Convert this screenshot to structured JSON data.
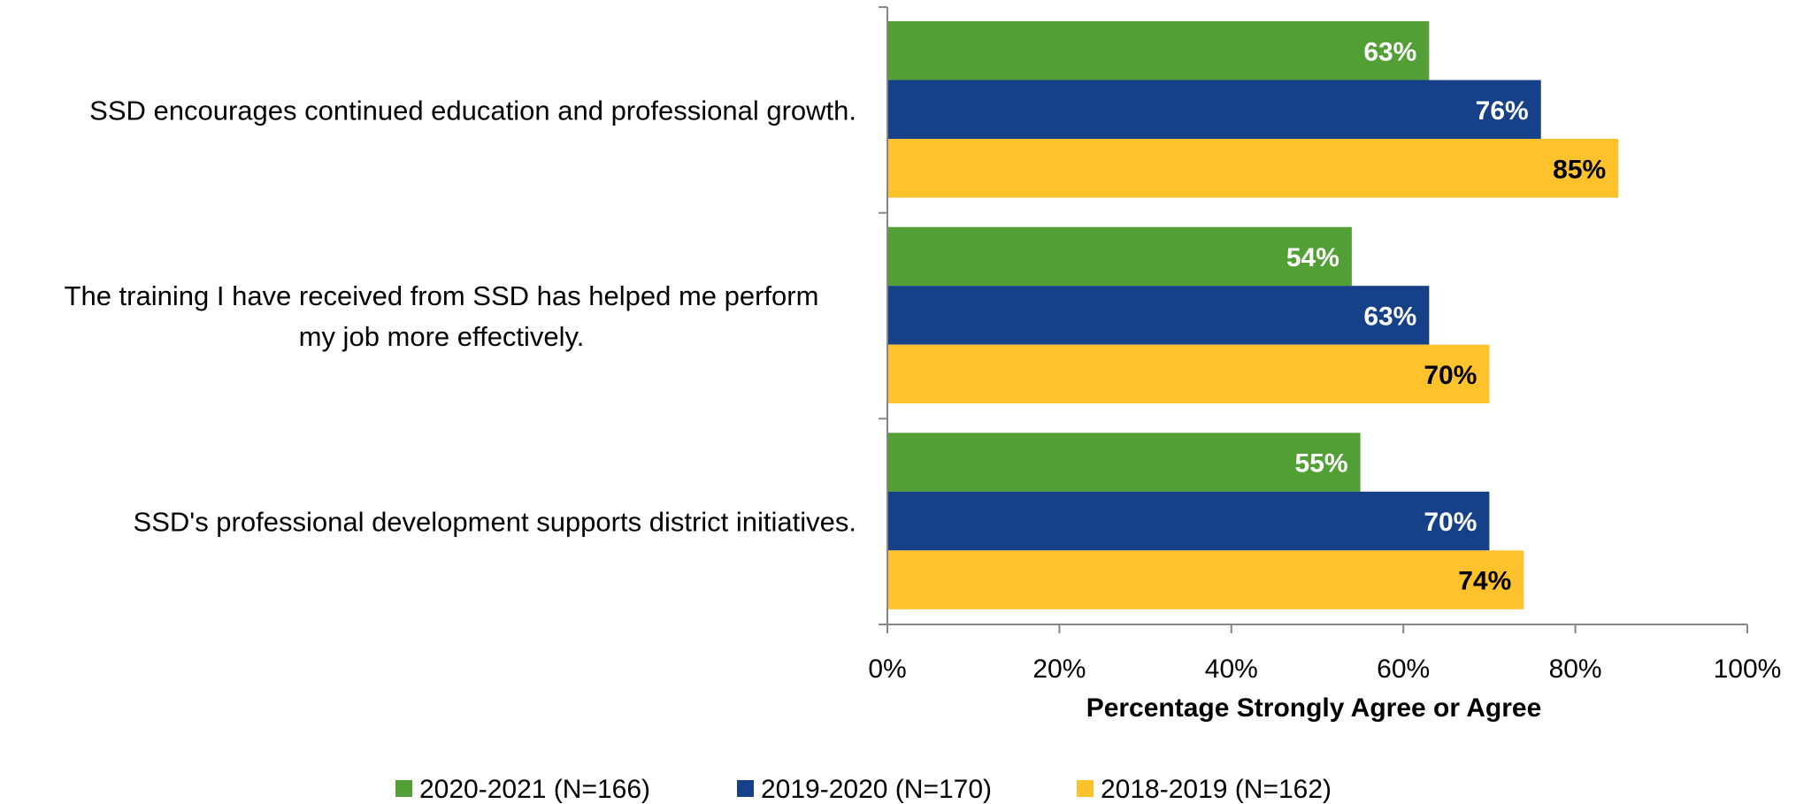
{
  "chart_data": {
    "type": "bar",
    "orientation": "horizontal",
    "categories": [
      [
        "SSD encourages continued education and professional growth."
      ],
      [
        "The training I have received from SSD  has helped me perform",
        "my job more effectively."
      ],
      [
        "SSD's professional development supports district initiatives."
      ]
    ],
    "series": [
      {
        "name": "2020-2021 (N=166)",
        "color": "#52A035",
        "label_color": "#ffffff",
        "values": [
          63,
          54,
          55
        ]
      },
      {
        "name": "2019-2020 (N=170)",
        "color": "#164189",
        "label_color": "#ffffff",
        "values": [
          76,
          63,
          70
        ]
      },
      {
        "name": "2018-2019 (N=162)",
        "color": "#FEC22D",
        "label_color": "#000000",
        "values": [
          85,
          70,
          74
        ]
      }
    ],
    "value_suffix": "%",
    "xlabel": "Percentage Strongly Agree or Agree",
    "xlim": [
      0,
      100
    ],
    "xticks": [
      "0%",
      "20%",
      "40%",
      "60%",
      "80%",
      "100%"
    ],
    "grid": false,
    "legend_position": "bottom"
  }
}
